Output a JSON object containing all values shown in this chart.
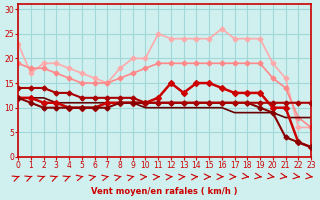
{
  "title": "",
  "xlabel": "Vent moyen/en rafales ( km/h )",
  "ylabel": "",
  "background_color": "#d0f0f0",
  "grid_color": "#a0d8d8",
  "axis_color": "#cc0000",
  "text_color": "#cc0000",
  "xlim": [
    0,
    23
  ],
  "ylim": [
    0,
    31
  ],
  "yticks": [
    0,
    5,
    10,
    15,
    20,
    25,
    30
  ],
  "xticks": [
    0,
    1,
    2,
    3,
    4,
    5,
    6,
    7,
    8,
    9,
    10,
    11,
    12,
    13,
    14,
    15,
    16,
    17,
    18,
    19,
    20,
    21,
    22,
    23
  ],
  "lines": [
    {
      "x": [
        0,
        1,
        2,
        3,
        4,
        5,
        6,
        7,
        8,
        9,
        10,
        11,
        12,
        13,
        14,
        15,
        16,
        17,
        18,
        19,
        20,
        21,
        22,
        23
      ],
      "y": [
        23,
        17,
        19,
        19,
        18,
        17,
        16,
        15,
        18,
        20,
        20,
        25,
        24,
        24,
        24,
        24,
        26,
        24,
        24,
        24,
        19,
        16,
        6,
        6
      ],
      "color": "#ffaaaa",
      "lw": 1.2,
      "marker": "D",
      "ms": 2.5,
      "zorder": 2
    },
    {
      "x": [
        0,
        1,
        2,
        3,
        4,
        5,
        6,
        7,
        8,
        9,
        10,
        11,
        12,
        13,
        14,
        15,
        16,
        17,
        18,
        19,
        20,
        21,
        22,
        23
      ],
      "y": [
        19,
        18,
        18,
        17,
        16,
        15,
        15,
        15,
        16,
        17,
        18,
        19,
        19,
        19,
        19,
        19,
        19,
        19,
        19,
        19,
        16,
        14,
        8,
        6
      ],
      "color": "#ff8888",
      "lw": 1.2,
      "marker": "D",
      "ms": 2.5,
      "zorder": 2
    },
    {
      "x": [
        0,
        1,
        2,
        3,
        4,
        5,
        6,
        7,
        8,
        9,
        10,
        11,
        12,
        13,
        14,
        15,
        16,
        17,
        18,
        19,
        20,
        21,
        22,
        23
      ],
      "y": [
        12,
        12,
        11,
        11,
        10,
        10,
        10,
        11,
        11,
        11,
        11,
        12,
        15,
        13,
        15,
        15,
        14,
        13,
        13,
        13,
        10,
        10,
        3,
        2
      ],
      "color": "#cc0000",
      "lw": 1.8,
      "marker": "D",
      "ms": 3,
      "zorder": 3
    },
    {
      "x": [
        0,
        1,
        2,
        3,
        4,
        5,
        6,
        7,
        8,
        9,
        10,
        11,
        12,
        13,
        14,
        15,
        16,
        17,
        18,
        19,
        20,
        21,
        22,
        23
      ],
      "y": [
        12,
        11,
        10,
        10,
        10,
        10,
        10,
        10,
        11,
        11,
        11,
        11,
        11,
        11,
        11,
        11,
        11,
        11,
        11,
        10,
        9,
        4,
        3,
        2
      ],
      "color": "#880000",
      "lw": 1.5,
      "marker": "D",
      "ms": 2.5,
      "zorder": 3
    },
    {
      "x": [
        0,
        1,
        2,
        3,
        4,
        5,
        6,
        7,
        8,
        9,
        10,
        11,
        12,
        13,
        14,
        15,
        16,
        17,
        18,
        19,
        20,
        21,
        22,
        23
      ],
      "y": [
        14,
        14,
        14,
        13,
        13,
        12,
        12,
        12,
        12,
        12,
        11,
        11,
        11,
        11,
        11,
        11,
        11,
        11,
        11,
        11,
        11,
        11,
        11,
        11
      ],
      "color": "#aa0000",
      "lw": 1.5,
      "marker": "D",
      "ms": 2.5,
      "zorder": 3
    },
    {
      "x": [
        0,
        1,
        2,
        3,
        4,
        5,
        6,
        7,
        8,
        9,
        10,
        11,
        12,
        13,
        14,
        15,
        16,
        17,
        18,
        19,
        20,
        21,
        22,
        23
      ],
      "y": [
        12,
        12,
        12,
        11,
        11,
        11,
        11,
        11,
        11,
        11,
        10,
        10,
        10,
        10,
        10,
        10,
        10,
        9,
        9,
        9,
        9,
        8,
        8,
        8
      ],
      "color": "#660000",
      "lw": 1.2,
      "marker": null,
      "ms": 0,
      "zorder": 2
    }
  ],
  "arrows_x": [
    0,
    1,
    2,
    3,
    4,
    5,
    6,
    7,
    8,
    9,
    10,
    11,
    12,
    13,
    14,
    15,
    16,
    17,
    18,
    19,
    20,
    21,
    22,
    23
  ],
  "arrow_color": "#cc0000"
}
